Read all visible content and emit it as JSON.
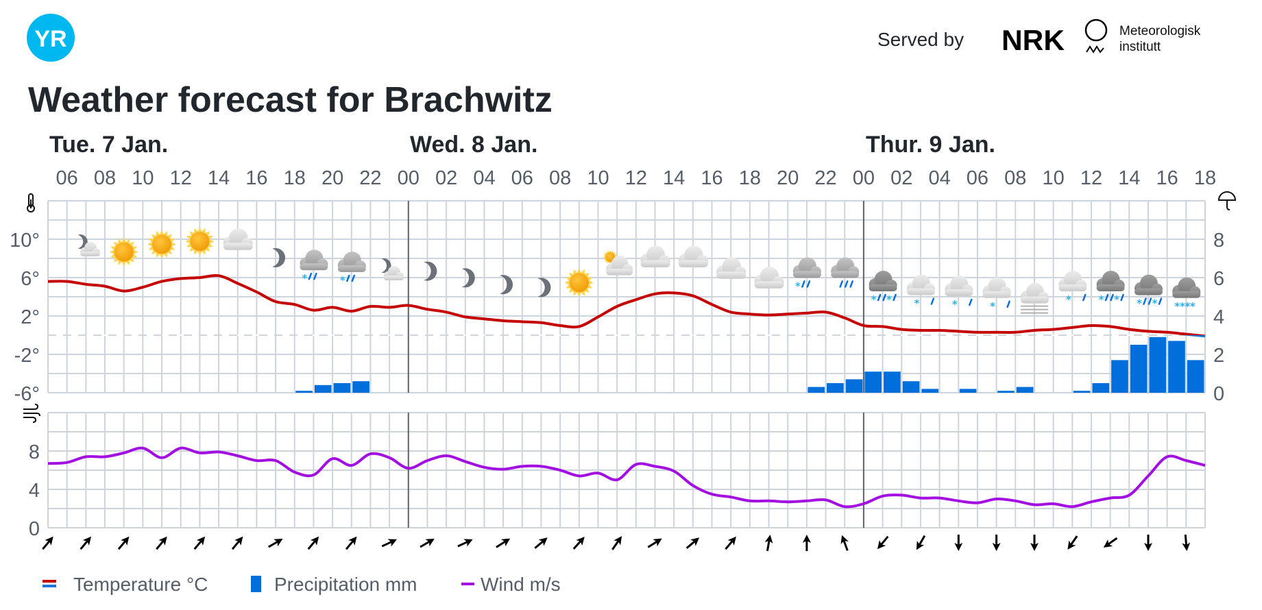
{
  "header": {
    "logo_text": "YR",
    "served_by": "Served by",
    "nrk_logo_text": "NRK",
    "met_line1": "Meteorologisk",
    "met_line2": "institutt"
  },
  "title": "Weather forecast for Brachwitz",
  "days": [
    "Tue. 7 Jan.",
    "Wed. 8 Jan.",
    "Thur. 9 Jan."
  ],
  "hour_labels": [
    "06",
    "08",
    "10",
    "12",
    "14",
    "16",
    "18",
    "20",
    "22",
    "00",
    "02",
    "04",
    "06",
    "08",
    "10",
    "12",
    "14",
    "16",
    "18",
    "20",
    "22",
    "00",
    "02",
    "04",
    "06",
    "08",
    "10",
    "12",
    "14",
    "16",
    "18"
  ],
  "temp_axis_labels": [
    "10°",
    "6°",
    "2°",
    "-2°",
    "-6°"
  ],
  "precip_axis_labels": [
    "8",
    "6",
    "4",
    "2",
    "0"
  ],
  "wind_axis_labels": [
    "8",
    "4",
    "0"
  ],
  "legend": {
    "temperature": "Temperature °C",
    "precipitation": "Precipitation mm",
    "wind": "Wind m/s"
  },
  "colors": {
    "temperature_warm": "#c40000",
    "temperature_cold": "#1f78d8",
    "precipitation": "#006edb",
    "wind": "#a20fe0",
    "logo": "#00b8f0",
    "grid": "#cdd4db",
    "day_separator": "#5f656c"
  },
  "weather_symbols": [
    "partly-cloudy-night",
    "clear-day",
    "clear-day",
    "clear-day",
    "cloudy",
    "clear-night",
    "sleet",
    "sleet",
    "partly-cloudy-night",
    "clear-night",
    "clear-night",
    "clear-night",
    "clear-night",
    "clear-day",
    "partly-cloudy-day",
    "cloudy",
    "cloudy",
    "cloudy",
    "cloudy",
    "sleet",
    "rain",
    "heavy-sleet",
    "light-sleet",
    "light-sleet",
    "light-sleet",
    "fog",
    "light-sleet",
    "heavy-sleet",
    "heavy-sleet",
    "snow"
  ],
  "wind_direction_arrows_deg": [
    40,
    40,
    40,
    40,
    40,
    40,
    60,
    40,
    40,
    65,
    60,
    65,
    58,
    50,
    42,
    35,
    58,
    50,
    40,
    10,
    0,
    340,
    220,
    210,
    180,
    180,
    180,
    215,
    235,
    180,
    175
  ],
  "chart_data": {
    "type": "line",
    "title": "Weather forecast for Brachwitz",
    "x_start": "Tue 7 Jan 05:00",
    "x_end": "Thu 9 Jan 18:00",
    "x_step": "1 hour",
    "series": [
      {
        "name": "Temperature °C",
        "type": "line",
        "axis": "left",
        "ylim": [
          -6,
          14
        ],
        "values": [
          5.6,
          5.6,
          5.3,
          5.1,
          4.6,
          5.0,
          5.6,
          5.9,
          6.0,
          6.2,
          5.4,
          4.5,
          3.5,
          3.2,
          2.6,
          2.9,
          2.5,
          3.0,
          2.9,
          3.1,
          2.7,
          2.4,
          1.9,
          1.7,
          1.5,
          1.4,
          1.3,
          1.0,
          0.9,
          1.9,
          3.0,
          3.7,
          4.3,
          4.4,
          4.1,
          3.2,
          2.4,
          2.2,
          2.1,
          2.2,
          2.3,
          2.4,
          1.8,
          1.0,
          0.9,
          0.6,
          0.5,
          0.5,
          0.4,
          0.3,
          0.3,
          0.3,
          0.5,
          0.6,
          0.8,
          1.0,
          0.9,
          0.6,
          0.4,
          0.3,
          0.1,
          -0.1
        ]
      },
      {
        "name": "Precipitation mm",
        "type": "bar",
        "axis": "right",
        "ylim": [
          0,
          10
        ],
        "values": [
          0,
          0,
          0,
          0,
          0,
          0,
          0,
          0,
          0,
          0,
          0,
          0,
          0,
          0.1,
          0.4,
          0.5,
          0.6,
          0,
          0,
          0,
          0,
          0,
          0,
          0,
          0,
          0,
          0,
          0,
          0,
          0,
          0,
          0,
          0,
          0,
          0,
          0,
          0,
          0,
          0,
          0,
          0.3,
          0.5,
          0.7,
          1.1,
          1.1,
          0.6,
          0.2,
          0,
          0.2,
          0,
          0.1,
          0.3,
          0,
          0,
          0.1,
          0.5,
          1.7,
          2.5,
          2.9,
          2.7,
          1.7
        ]
      },
      {
        "name": "Wind m/s",
        "type": "line",
        "axis": "wind",
        "ylim": [
          0,
          12
        ],
        "values": [
          6.7,
          6.8,
          7.4,
          7.4,
          7.8,
          8.3,
          7.3,
          8.3,
          7.8,
          7.9,
          7.5,
          7.0,
          7.0,
          5.8,
          5.5,
          7.2,
          6.5,
          7.7,
          7.3,
          6.2,
          7.0,
          7.5,
          6.9,
          6.3,
          6.1,
          6.4,
          6.4,
          6.0,
          5.4,
          5.7,
          5.0,
          6.6,
          6.4,
          5.9,
          4.4,
          3.5,
          3.2,
          2.8,
          2.8,
          2.7,
          2.8,
          2.9,
          2.2,
          2.5,
          3.3,
          3.4,
          3.1,
          3.1,
          2.8,
          2.6,
          3.0,
          2.8,
          2.4,
          2.5,
          2.2,
          2.7,
          3.1,
          3.4,
          5.4,
          7.4,
          7.0,
          6.5
        ]
      }
    ],
    "grid": true,
    "legend_position": "bottom-left"
  }
}
